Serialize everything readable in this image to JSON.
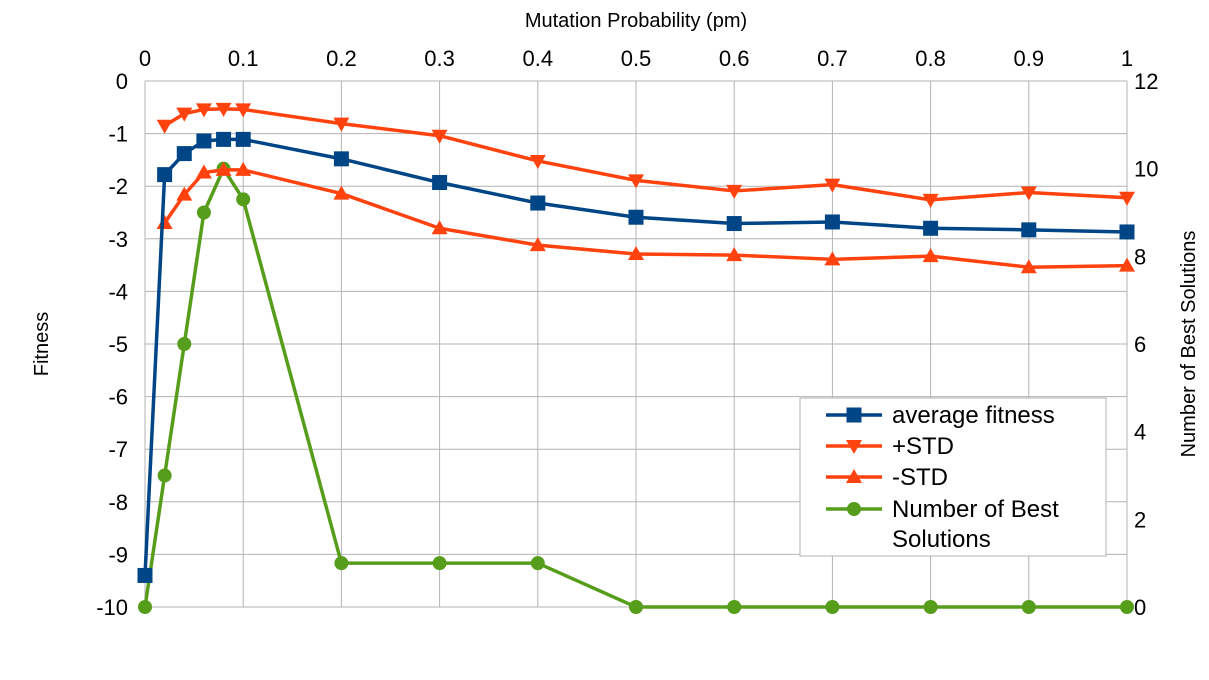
{
  "chart_data": {
    "type": "line",
    "xlabel": "Mutation Probability (pm)",
    "ylabel": "Fitness",
    "y2label": "Number of Best Solutions",
    "xticks": [
      "0",
      "0.1",
      "0.2",
      "0.3",
      "0.4",
      "0.5",
      "0.6",
      "0.7",
      "0.8",
      "0.9",
      "1"
    ],
    "xlim": [
      0,
      1
    ],
    "ylim": [
      -10,
      0
    ],
    "yticks": [
      "0",
      "-1",
      "-2",
      "-3",
      "-4",
      "-5",
      "-6",
      "-7",
      "-8",
      "-9",
      "-10"
    ],
    "y2lim": [
      0,
      12
    ],
    "y2ticks": [
      "0",
      "2",
      "4",
      "6",
      "8",
      "10",
      "12"
    ],
    "x": [
      0,
      0.02,
      0.04,
      0.06,
      0.08,
      0.1,
      0.2,
      0.3,
      0.4,
      0.5,
      0.6,
      0.7,
      0.8,
      0.9,
      1.0
    ],
    "grid": true,
    "legend_position": "bottom-right",
    "series": [
      {
        "name": "average fitness",
        "axis": "left",
        "color": "#004586",
        "marker": "square",
        "values": [
          -9.4,
          -1.78,
          -1.38,
          -1.14,
          -1.11,
          -1.11,
          -1.48,
          -1.93,
          -2.32,
          -2.59,
          -2.71,
          -2.68,
          -2.8,
          -2.83,
          -2.87
        ]
      },
      {
        "name": "+STD",
        "axis": "left",
        "color": "#ff420e",
        "marker": "triangle-down",
        "values": [
          null,
          -0.85,
          -0.62,
          -0.54,
          -0.53,
          -0.54,
          -0.81,
          -1.04,
          -1.52,
          -1.89,
          -2.09,
          -1.97,
          -2.26,
          -2.12,
          -2.22
        ]
      },
      {
        "name": "-STD",
        "axis": "left",
        "color": "#ff420e",
        "marker": "triangle-up",
        "values": [
          null,
          -2.7,
          -2.16,
          -1.74,
          -1.69,
          -1.69,
          -2.14,
          -2.8,
          -3.12,
          -3.29,
          -3.31,
          -3.39,
          -3.33,
          -3.54,
          -3.51
        ]
      },
      {
        "name": "Number of Best Solutions",
        "axis": "right",
        "color": "#579d1c",
        "marker": "circle",
        "values": [
          0,
          3,
          6,
          9,
          10,
          9.3,
          1,
          1,
          1,
          0,
          0,
          0,
          0,
          0,
          0
        ]
      }
    ]
  }
}
